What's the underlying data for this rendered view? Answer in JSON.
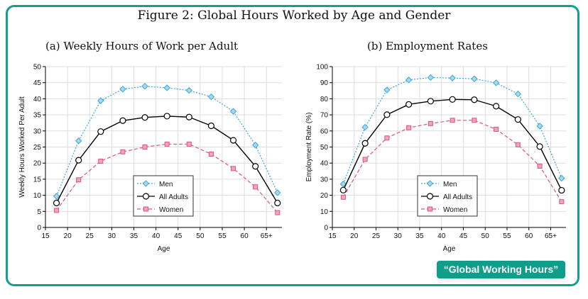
{
  "figure_title": "Figure 2: Global Hours Worked by Age and Gender",
  "badge": "“Global Working Hours”",
  "colors": {
    "frame": "#12a08c",
    "men": "#3aa8d8",
    "all": "#000000",
    "women": "#d9577a"
  },
  "chart_data": [
    {
      "type": "line",
      "title": "(a) Weekly Hours of Work per Adult",
      "xlabel": "Age",
      "ylabel": "Weekly Hours Worked Per Adult",
      "xlim": [
        15,
        68.5
      ],
      "ylim": [
        0,
        50
      ],
      "xticks": [
        15,
        20,
        25,
        30,
        35,
        40,
        45,
        50,
        55,
        60,
        65
      ],
      "xtick_labels": [
        "15",
        "20",
        "25",
        "30",
        "35",
        "40",
        "45",
        "50",
        "55",
        "60",
        "65+"
      ],
      "yticks": [
        0,
        5,
        10,
        15,
        20,
        25,
        30,
        35,
        40,
        45,
        50
      ],
      "grid": true,
      "legend": "bottom-center",
      "x": [
        17.5,
        22.5,
        27.5,
        32.5,
        37.5,
        42.5,
        47.5,
        52.5,
        57.5,
        62.5,
        67.5
      ],
      "series": [
        {
          "name": "Men",
          "marker": "diamond",
          "style": "dotted",
          "values": [
            9.7,
            26.9,
            39.4,
            43.0,
            43.9,
            43.4,
            42.6,
            40.6,
            36.1,
            25.6,
            10.8
          ]
        },
        {
          "name": "All Adults",
          "marker": "circle",
          "style": "solid",
          "values": [
            7.6,
            20.9,
            29.8,
            33.2,
            34.2,
            34.6,
            34.3,
            31.6,
            27.1,
            19.0,
            7.6
          ]
        },
        {
          "name": "Women",
          "marker": "square",
          "style": "dashed",
          "values": [
            5.3,
            14.8,
            20.6,
            23.5,
            25.0,
            25.9,
            25.9,
            22.8,
            18.3,
            12.6,
            4.6
          ]
        }
      ]
    },
    {
      "type": "line",
      "title": "(b) Employment Rates",
      "xlabel": "Age",
      "ylabel": "Employment Rate (%)",
      "xlim": [
        15,
        68.5
      ],
      "ylim": [
        0,
        100
      ],
      "xticks": [
        15,
        20,
        25,
        30,
        35,
        40,
        45,
        50,
        55,
        60,
        65
      ],
      "xtick_labels": [
        "15",
        "20",
        "25",
        "30",
        "35",
        "40",
        "45",
        "50",
        "55",
        "60",
        "65+"
      ],
      "yticks": [
        0,
        10,
        20,
        30,
        40,
        50,
        60,
        70,
        80,
        90,
        100
      ],
      "grid": true,
      "legend": "bottom-center",
      "x": [
        17.5,
        22.5,
        27.5,
        32.5,
        37.5,
        42.5,
        47.5,
        52.5,
        57.5,
        62.5,
        67.5
      ],
      "series": [
        {
          "name": "Men",
          "marker": "diamond",
          "style": "dotted",
          "values": [
            27.0,
            62.3,
            85.5,
            91.7,
            93.2,
            92.9,
            92.4,
            89.9,
            83.0,
            63.0,
            30.6
          ]
        },
        {
          "name": "All Adults",
          "marker": "circle",
          "style": "solid",
          "values": [
            23.2,
            52.3,
            70.1,
            76.5,
            78.5,
            79.6,
            79.4,
            75.4,
            67.1,
            50.3,
            23.1
          ]
        },
        {
          "name": "Women",
          "marker": "square",
          "style": "dashed",
          "values": [
            18.8,
            42.3,
            55.6,
            62.0,
            64.6,
            66.6,
            66.6,
            61.0,
            51.4,
            38.1,
            16.0
          ]
        }
      ]
    }
  ]
}
